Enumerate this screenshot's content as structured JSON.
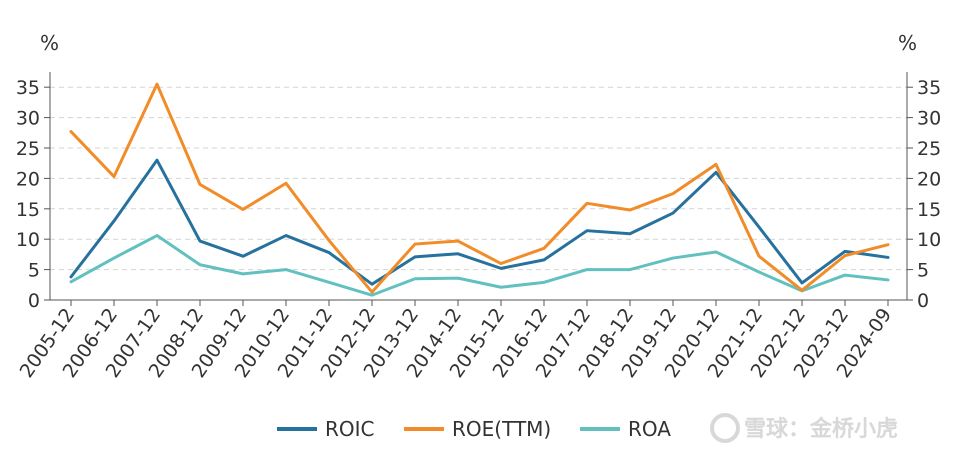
{
  "chart_data": {
    "type": "line",
    "categories": [
      "2005-12",
      "2006-12",
      "2007-12",
      "2008-12",
      "2009-12",
      "2010-12",
      "2011-12",
      "2012-12",
      "2013-12",
      "2014-12",
      "2015-12",
      "2016-12",
      "2017-12",
      "2018-12",
      "2019-12",
      "2020-12",
      "2021-12",
      "2022-12",
      "2023-12",
      "2024-09"
    ],
    "series": [
      {
        "name": "ROIC",
        "color": "#27719e",
        "values": [
          3.8,
          13.0,
          23.0,
          9.7,
          7.2,
          10.6,
          7.8,
          2.6,
          7.1,
          7.6,
          5.2,
          6.6,
          11.4,
          10.9,
          14.3,
          21.0,
          12.0,
          2.8,
          8.0,
          7.0
        ]
      },
      {
        "name": "ROE(TTM)",
        "color": "#f28c28",
        "values": [
          27.7,
          20.3,
          35.5,
          19.0,
          14.9,
          19.2,
          9.8,
          1.3,
          9.2,
          9.7,
          6.0,
          8.5,
          15.9,
          14.8,
          17.5,
          22.3,
          7.2,
          1.6,
          7.3,
          9.1
        ]
      },
      {
        "name": "ROA",
        "color": "#62c0c0",
        "values": [
          3.0,
          6.9,
          10.6,
          5.8,
          4.3,
          5.0,
          2.9,
          0.8,
          3.5,
          3.6,
          2.1,
          2.9,
          5.0,
          5.0,
          6.9,
          7.9,
          4.6,
          1.5,
          4.1,
          3.3
        ]
      }
    ],
    "y_ticks": [
      0,
      5,
      10,
      15,
      20,
      25,
      30,
      35
    ],
    "ylim": [
      0,
      37.5
    ],
    "y_unit_left": "%",
    "y_unit_right": "%",
    "grid": true,
    "grid_style": "dashed-horizontal",
    "legend_position": "bottom-center"
  },
  "watermark": "雪球：金桥小虎"
}
